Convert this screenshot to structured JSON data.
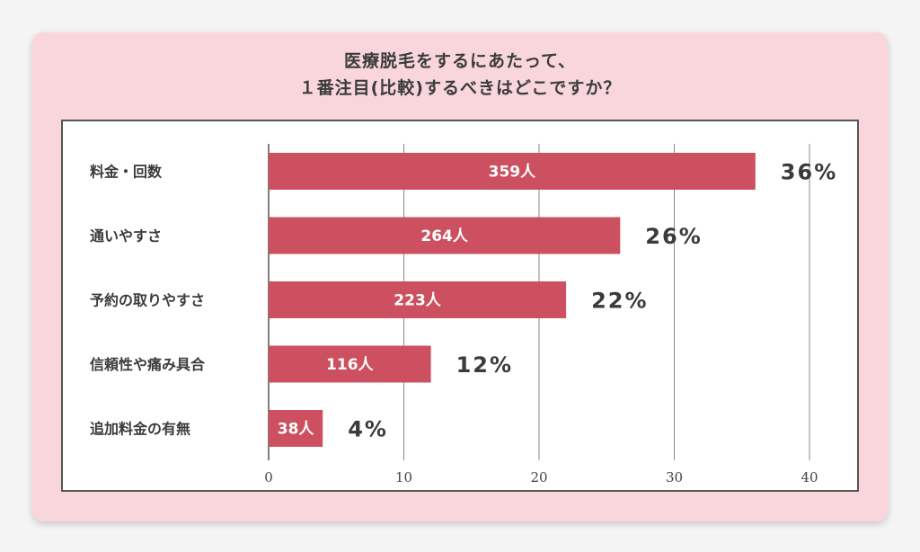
{
  "title": {
    "line1": "医療脱毛をするにあたって、",
    "line2": "１番注目(比較)するべきはどこですか？"
  },
  "colors": {
    "card_bg": "#f8d6dc",
    "bar": "#cc5060",
    "text": "#3b3b3b"
  },
  "chart_data": {
    "type": "bar",
    "orientation": "horizontal",
    "title": "医療脱毛をするにあたって、１番注目(比較)するべきはどこですか？",
    "categories": [
      "料金・回数",
      "通いやすさ",
      "予約の取りやすさ",
      "信頼性や痛み具合",
      "追加料金の有無"
    ],
    "values": [
      36,
      26,
      22,
      12,
      4
    ],
    "counts": [
      "359人",
      "264人",
      "223人",
      "116人",
      "38人"
    ],
    "value_labels": [
      "36%",
      "26%",
      "22%",
      "12%",
      "4%"
    ],
    "xlim": [
      0,
      40
    ],
    "xticks": [
      0,
      10,
      20,
      30,
      40
    ],
    "grid": true,
    "xlabel": "",
    "ylabel": ""
  }
}
